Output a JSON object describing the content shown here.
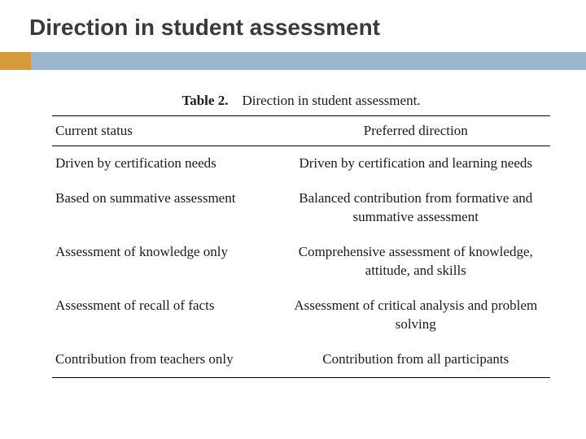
{
  "slide": {
    "title": "Direction in student assessment",
    "accent": {
      "left_color": "#d59a3a",
      "right_color": "#9db6cf"
    }
  },
  "table": {
    "caption_label": "Table 2.",
    "caption_text": "Direction in student assessment.",
    "columns": [
      "Current status",
      "Preferred direction"
    ],
    "rows": [
      [
        "Driven by certification needs",
        "Driven by certification and learning needs"
      ],
      [
        "Based on summative assessment",
        "Balanced contribution from formative and summative assessment"
      ],
      [
        "Assessment of knowledge only",
        "Comprehensive assessment of knowledge, attitude, and skills"
      ],
      [
        "Assessment of recall of facts",
        "Assessment of critical analysis and problem solving"
      ],
      [
        "Contribution from teachers only",
        "Contribution from all participants"
      ]
    ],
    "text_color": "#1a1a1a",
    "border_color": "#000000",
    "font_family_serif": "Palatino Linotype",
    "caption_fontsize": 17,
    "body_fontsize": 17
  },
  "colors": {
    "background": "#ffffff",
    "title_text": "#3a3a3a"
  }
}
